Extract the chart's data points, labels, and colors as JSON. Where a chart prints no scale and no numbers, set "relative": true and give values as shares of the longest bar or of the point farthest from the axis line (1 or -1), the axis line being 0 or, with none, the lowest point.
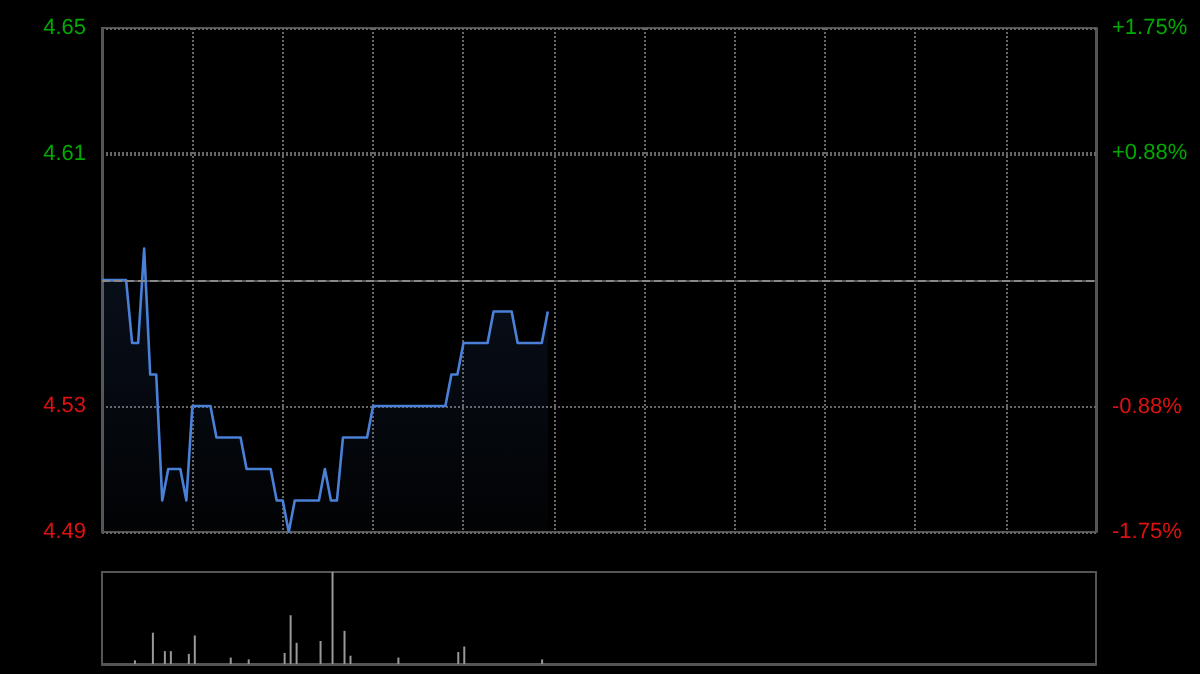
{
  "chart_data": [
    {
      "type": "area",
      "categories": [
        null,
        null,
        null,
        null,
        null,
        null,
        null,
        null,
        null,
        null,
        null,
        null,
        null,
        null,
        null,
        null,
        null,
        null,
        null,
        null,
        null,
        null,
        null,
        null,
        null,
        null,
        null,
        null,
        null,
        null,
        null,
        null,
        null,
        null,
        null,
        null,
        null,
        null,
        null,
        null,
        null,
        null,
        null,
        null,
        null,
        null,
        null,
        null,
        null,
        null,
        null,
        null,
        null,
        null,
        null,
        null,
        null,
        null,
        null,
        null,
        null,
        null,
        null,
        null,
        null,
        null,
        null,
        null,
        null,
        null,
        null,
        null,
        null,
        null,
        null,
        null,
        null,
        null,
        null,
        null,
        null,
        null,
        null,
        null,
        null,
        null,
        null,
        null,
        null,
        null,
        null,
        null,
        null,
        null,
        null,
        null,
        null,
        null,
        null,
        null,
        null,
        null,
        null,
        null,
        null,
        null,
        null,
        null,
        null,
        null,
        null,
        null,
        null,
        null,
        null,
        null,
        null,
        null,
        null,
        null,
        null,
        null,
        null,
        null,
        null,
        null,
        null,
        null,
        null,
        null,
        null,
        null,
        null,
        null,
        null,
        null,
        null,
        null,
        null,
        null,
        null,
        null,
        null,
        null,
        null,
        null,
        null,
        null,
        null,
        null,
        null,
        null,
        null,
        null,
        null,
        null,
        null,
        null,
        null,
        null,
        null,
        null,
        null,
        null,
        null,
        null
      ],
      "series": [
        {
          "color": "#4a80d8",
          "values": [
            4.57,
            4.57,
            4.57,
            4.57,
            4.57,
            4.55,
            4.55,
            4.58,
            4.54,
            4.54,
            4.5,
            4.51,
            4.51,
            4.51,
            4.5,
            4.53,
            4.53,
            4.53,
            4.53,
            4.52,
            4.52,
            4.52,
            4.52,
            4.52,
            4.51,
            4.51,
            4.51,
            4.51,
            4.51,
            4.5,
            4.5,
            4.49,
            4.5,
            4.5,
            4.5,
            4.5,
            4.5,
            4.51,
            4.5,
            4.5,
            4.52,
            4.52,
            4.52,
            4.52,
            4.52,
            4.53,
            4.53,
            4.53,
            4.53,
            4.53,
            4.53,
            4.53,
            4.53,
            4.53,
            4.53,
            4.53,
            4.53,
            4.53,
            4.54,
            4.54,
            4.55,
            4.55,
            4.55,
            4.55,
            4.55,
            4.56,
            4.56,
            4.56,
            4.56,
            4.55,
            4.55,
            4.55,
            4.55,
            4.55,
            4.56,
            null,
            null,
            null,
            null,
            null,
            null,
            null,
            null,
            null,
            null,
            null,
            null,
            null,
            null,
            null,
            null,
            null,
            null,
            null,
            null,
            null,
            null,
            null,
            null,
            null,
            null,
            null,
            null,
            null,
            null,
            null,
            null,
            null,
            null,
            null,
            null,
            null,
            null,
            null,
            null,
            null,
            null,
            null,
            null,
            null,
            null,
            null,
            null,
            null,
            null,
            null,
            null,
            null,
            null,
            null,
            null,
            null,
            null,
            null,
            null,
            null,
            null,
            null,
            null,
            null,
            null,
            null,
            null,
            null,
            null,
            null,
            null,
            null,
            null,
            null,
            null,
            null,
            null,
            null,
            null,
            null,
            null,
            null,
            null,
            null,
            null,
            null,
            null,
            null,
            null,
            null
          ]
        }
      ],
      "ylim": [
        4.49,
        4.65
      ],
      "yticks": [
        4.49,
        4.53,
        4.61,
        4.65
      ],
      "y2lim": [
        -1.75,
        1.75
      ],
      "y2ticks": [
        {
          "value": -1.75,
          "label": "-1.75%"
        },
        {
          "value": -0.88,
          "label": "-0.88%"
        },
        {
          "value": 0.88,
          "label": "+0.88%"
        },
        {
          "value": 1.75,
          "label": "+1.75%"
        }
      ],
      "ref_lines": [
        {
          "axis": "y",
          "value": 4.57,
          "line_style": "dashed",
          "color": "#888888"
        }
      ],
      "grid": true,
      "line_style": "solid",
      "tick_labels": "y"
    },
    {
      "type": "bar",
      "relative": true,
      "categories": [
        null,
        null,
        null,
        null,
        null,
        null,
        null,
        null,
        null,
        null,
        null,
        null,
        null,
        null,
        null,
        null,
        null,
        null,
        null,
        null,
        null,
        null,
        null,
        null,
        null,
        null,
        null,
        null,
        null,
        null,
        null,
        null,
        null,
        null,
        null,
        null,
        null,
        null,
        null,
        null,
        null,
        null,
        null,
        null,
        null,
        null,
        null,
        null,
        null,
        null,
        null,
        null,
        null,
        null,
        null,
        null,
        null,
        null,
        null,
        null,
        null,
        null,
        null,
        null,
        null,
        null,
        null,
        null,
        null,
        null,
        null,
        null,
        null,
        null,
        null,
        null,
        null,
        null,
        null,
        null,
        null,
        null,
        null,
        null,
        null,
        null,
        null,
        null,
        null,
        null,
        null,
        null,
        null,
        null,
        null,
        null,
        null,
        null,
        null,
        null,
        null,
        null,
        null,
        null,
        null,
        null,
        null,
        null,
        null,
        null,
        null,
        null,
        null,
        null,
        null,
        null,
        null,
        null,
        null,
        null,
        null,
        null,
        null,
        null,
        null,
        null,
        null,
        null,
        null,
        null,
        null,
        null,
        null,
        null,
        null,
        null,
        null,
        null,
        null,
        null,
        null,
        null,
        null,
        null,
        null,
        null,
        null,
        null,
        null,
        null,
        null,
        null,
        null,
        null,
        null,
        null,
        null,
        null,
        null,
        null,
        null,
        null,
        null,
        null,
        null,
        null
      ],
      "values": [
        0,
        0,
        0,
        0,
        0,
        0.04,
        0,
        0,
        0.34,
        0,
        0.14,
        0.14,
        0,
        0,
        0.11,
        0.31,
        0,
        0,
        0,
        0,
        0,
        0.07,
        0,
        0,
        0.05,
        0,
        0,
        0,
        0,
        0,
        0.12,
        0.53,
        0.23,
        0,
        0,
        0,
        0.25,
        0,
        1.0,
        0,
        0.36,
        0.09,
        0,
        0,
        0,
        0,
        0,
        0,
        0,
        0.07,
        0,
        0,
        0,
        0,
        0,
        0,
        0,
        0,
        0,
        0.13,
        0.19,
        0,
        0,
        0,
        0,
        0,
        0,
        0,
        0,
        0,
        0,
        0,
        0,
        0.05,
        0,
        null,
        null,
        null,
        null,
        null,
        null,
        null,
        null,
        null,
        null,
        null,
        null,
        null,
        null,
        null,
        null,
        null,
        null,
        null,
        null,
        null,
        null,
        null,
        null,
        null,
        null,
        null,
        null,
        null,
        null,
        null,
        null,
        null,
        null,
        null,
        null,
        null,
        null,
        null,
        null,
        null,
        null,
        null,
        null,
        null,
        null,
        null,
        null,
        null,
        null,
        null,
        null,
        null,
        null,
        null,
        null,
        null,
        null,
        null,
        null,
        null,
        null,
        null,
        null,
        null,
        null,
        null,
        null,
        null,
        null,
        null,
        null,
        null,
        null,
        null,
        null,
        null,
        null,
        null,
        null,
        null,
        null,
        null,
        null,
        null,
        null,
        null,
        null,
        null,
        null,
        null
      ],
      "color": "#999999",
      "tick_labels": false
    }
  ]
}
